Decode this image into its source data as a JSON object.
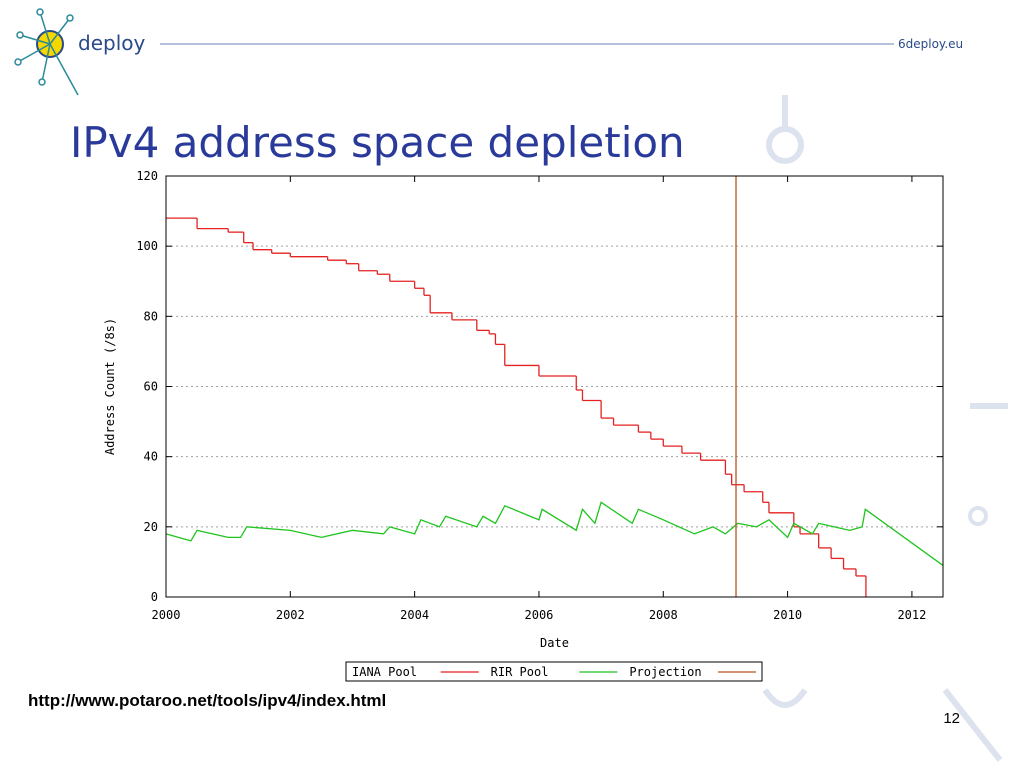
{
  "slide": {
    "logo_text": "deploy",
    "site": "6deploy.eu",
    "title": "IPv4 address space depletion",
    "source": "http://www.potaroo.net/tools/ipv4/index.html",
    "page_number": "12"
  },
  "chart_data": {
    "type": "line",
    "xlabel": "Date",
    "ylabel": "Address Count (/8s)",
    "xlim": [
      2000,
      2012.5
    ],
    "ylim": [
      0,
      120
    ],
    "xticks": [
      2000,
      2002,
      2004,
      2006,
      2008,
      2010,
      2012
    ],
    "yticks": [
      0,
      20,
      40,
      60,
      80,
      100,
      120
    ],
    "grid": true,
    "legend": "bottom",
    "series": [
      {
        "name": "IANA Pool",
        "color": "#e42222",
        "step": true,
        "x": [
          2000,
          2000.5,
          2001,
          2001.25,
          2001.4,
          2001.7,
          2002,
          2002.6,
          2002.9,
          2003.1,
          2003.4,
          2003.6,
          2004,
          2004.15,
          2004.25,
          2004.6,
          2005,
          2005.2,
          2005.3,
          2005.45,
          2006,
          2006.6,
          2006.7,
          2007,
          2007.2,
          2007.6,
          2007.8,
          2008,
          2008.3,
          2008.6,
          2009,
          2009.1,
          2009.3,
          2009.6,
          2009.7,
          2010.1,
          2010.2,
          2010.5,
          2010.7,
          2010.9,
          2011.1,
          2011.26
        ],
        "values": [
          108,
          105,
          104,
          101,
          99,
          98,
          97,
          96,
          95,
          93,
          92,
          90,
          88,
          86,
          81,
          79,
          76,
          75,
          72,
          66,
          63,
          59,
          56,
          51,
          49,
          47,
          45,
          43,
          41,
          39,
          35,
          32,
          30,
          27,
          24,
          20,
          18,
          14,
          11,
          8,
          6,
          0
        ]
      },
      {
        "name": "RIR Pool",
        "color": "#1fc41f",
        "x": [
          2000,
          2000.4,
          2000.5,
          2001,
          2001.2,
          2001.3,
          2002,
          2002.5,
          2003,
          2003.5,
          2003.6,
          2004,
          2004.1,
          2004.4,
          2004.5,
          2005,
          2005.1,
          2005.3,
          2005.45,
          2006,
          2006.05,
          2006.6,
          2006.7,
          2006.9,
          2007,
          2007.5,
          2007.6,
          2008,
          2008.5,
          2008.8,
          2009,
          2009.2,
          2009.5,
          2009.7,
          2010,
          2010.1,
          2010.4,
          2010.5,
          2011,
          2011.2,
          2011.25,
          2012.5
        ],
        "values": [
          18,
          16,
          19,
          17,
          17,
          20,
          19,
          17,
          19,
          18,
          20,
          18,
          22,
          20,
          23,
          20,
          23,
          21,
          26,
          22,
          25,
          19,
          25,
          21,
          27,
          21,
          25,
          22,
          18,
          20,
          18,
          21,
          20,
          22,
          17,
          21,
          18,
          21,
          19,
          20,
          25,
          9
        ]
      },
      {
        "name": "Projection",
        "color": "#b5561f",
        "x": [
          2009.17,
          2009.17
        ],
        "values": [
          0,
          120
        ]
      }
    ]
  }
}
